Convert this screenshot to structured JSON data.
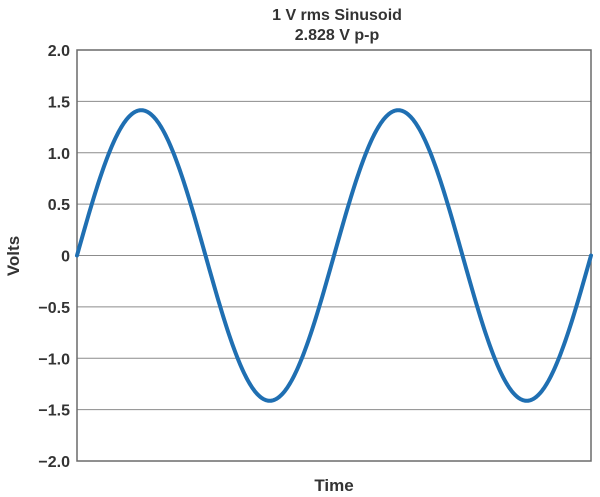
{
  "chart_data": {
    "type": "line",
    "title": "1 V rms Sinusoid",
    "subtitle": "2.828 V p-p",
    "xlabel": "Time",
    "ylabel": "Volts",
    "ylim": [
      -2.0,
      2.0
    ],
    "yticks": [
      2.0,
      1.5,
      1.0,
      0.5,
      0,
      -0.5,
      -1.0,
      -1.5,
      -2.0
    ],
    "ytick_labels": [
      "2.0",
      "1.5",
      "1.0",
      "0.5",
      "0",
      "−0.5",
      "−1.0",
      "−1.5",
      "−2.0"
    ],
    "grid": true,
    "legend": "none",
    "series": [
      {
        "color": "#1f6fb2",
        "waveform": "sine",
        "amplitude": 1.414,
        "cycles": 2,
        "start_phase": 0
      }
    ]
  }
}
